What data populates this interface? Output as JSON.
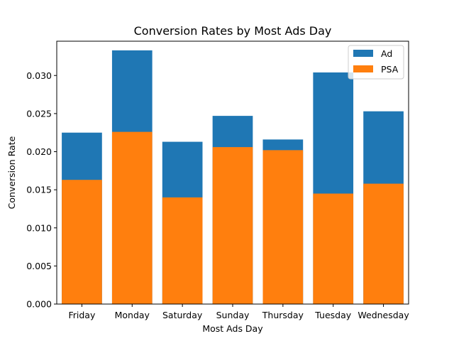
{
  "chart_data": {
    "type": "bar",
    "stacked": false,
    "overlapping": true,
    "title": "Conversion Rates by Most Ads Day",
    "xlabel": "Most Ads Day",
    "ylabel": "Conversion Rate",
    "categories": [
      "Friday",
      "Monday",
      "Saturday",
      "Sunday",
      "Thursday",
      "Tuesday",
      "Wednesday"
    ],
    "series": [
      {
        "name": "Ad",
        "color": "#1f77b4",
        "values": [
          0.0225,
          0.0333,
          0.0213,
          0.0247,
          0.0216,
          0.0304,
          0.0253
        ]
      },
      {
        "name": "PSA",
        "color": "#ff7f0e",
        "values": [
          0.0163,
          0.0226,
          0.014,
          0.0206,
          0.0202,
          0.0145,
          0.0158
        ]
      }
    ],
    "ylim": [
      0,
      0.0345
    ],
    "yticks": [
      0.0,
      0.005,
      0.01,
      0.015,
      0.02,
      0.025,
      0.03
    ],
    "ytick_labels": [
      "0.000",
      "0.005",
      "0.010",
      "0.015",
      "0.020",
      "0.025",
      "0.030"
    ],
    "grid": false,
    "legend_position": "top-right"
  }
}
